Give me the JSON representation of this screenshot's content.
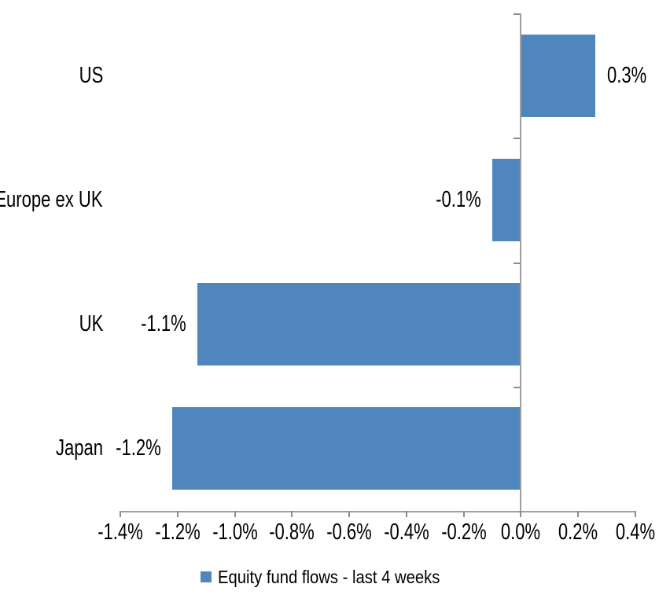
{
  "chart_data": {
    "type": "bar",
    "orientation": "horizontal",
    "title": "",
    "xlabel": "",
    "ylabel": "",
    "categories": [
      "US",
      "Europe ex UK",
      "UK",
      "Japan"
    ],
    "values": [
      0.3,
      -0.1,
      -1.1,
      -1.2
    ],
    "value_labels": [
      "0.3%",
      "-0.1%",
      "-1.1%",
      "-1.2%"
    ],
    "plotted_values": [
      0.26,
      -0.1,
      -1.13,
      -1.22
    ],
    "series": [
      {
        "name": "Equity fund flows - last 4 weeks",
        "values": [
          0.3,
          -0.1,
          -1.1,
          -1.2
        ]
      }
    ],
    "xlim": [
      -1.4,
      0.4
    ],
    "x_tick_values": [
      -1.4,
      -1.2,
      -1.0,
      -0.8,
      -0.6,
      -0.4,
      -0.2,
      0.0,
      0.2,
      0.4
    ],
    "x_tick_labels": [
      "-1.4%",
      "-1.2%",
      "-1.0%",
      "-0.8%",
      "-0.6%",
      "-0.4%",
      "-0.2%",
      "0.0%",
      "0.2%",
      "0.4%"
    ],
    "grid": false,
    "legend_position": "bottom",
    "legend_label": "Equity fund flows - last 4 weeks",
    "colors": {
      "bar": "#4E86BD",
      "axis_line": "#A0A0A0",
      "tick": "#8C8C8C",
      "text": "#000000",
      "background": "#FFFFFF"
    }
  }
}
